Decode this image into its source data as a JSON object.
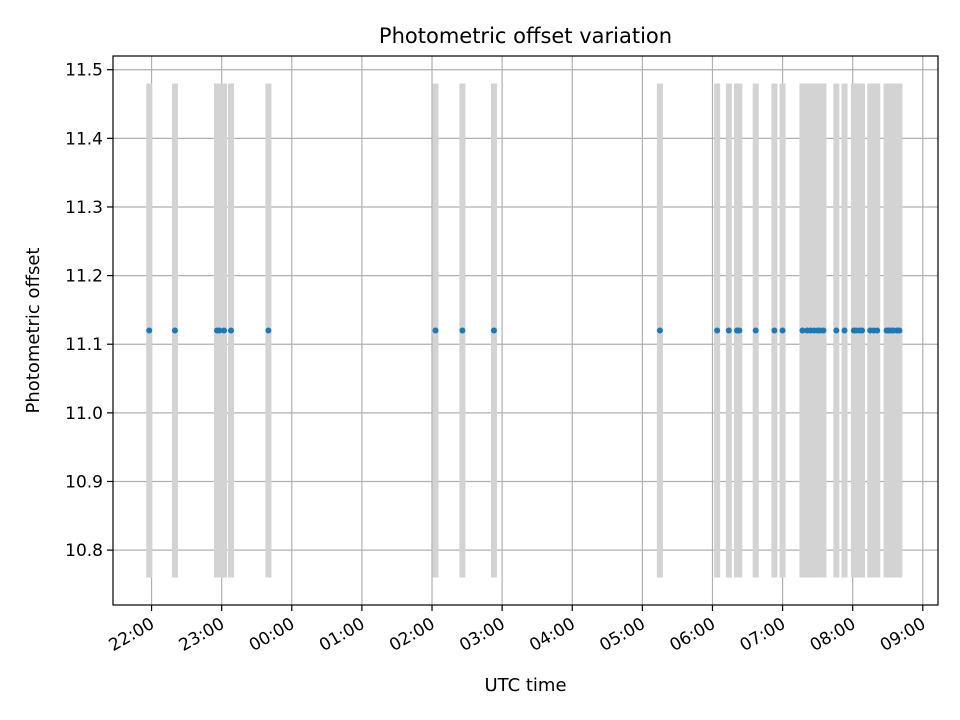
{
  "chart_data": {
    "type": "scatter",
    "title": "Photometric offset variation",
    "xlabel": "UTC time",
    "ylabel": "Photometric offset",
    "x_axis_kind": "time-of-day spanning midnight",
    "xlim": [
      "21:27",
      "09:13"
    ],
    "ylim": [
      10.72,
      11.52
    ],
    "x_ticks": [
      "22:00",
      "23:00",
      "00:00",
      "01:00",
      "02:00",
      "03:00",
      "04:00",
      "05:00",
      "06:00",
      "07:00",
      "08:00",
      "09:00"
    ],
    "y_ticks": [
      "10.8",
      "10.9",
      "11.0",
      "11.1",
      "11.2",
      "11.3",
      "11.4",
      "11.5"
    ],
    "grid": true,
    "error_bar_range": [
      10.76,
      11.48
    ],
    "series": [
      {
        "color": "#1f77b4",
        "errorbar_color": "#d3d3d3",
        "points": [
          {
            "x": "21:58",
            "y": 11.12
          },
          {
            "x": "22:20",
            "y": 11.12
          },
          {
            "x": "22:56",
            "y": 11.12
          },
          {
            "x": "22:58",
            "y": 11.12
          },
          {
            "x": "23:02",
            "y": 11.12
          },
          {
            "x": "23:08",
            "y": 11.12
          },
          {
            "x": "23:40",
            "y": 11.12
          },
          {
            "x": "02:03",
            "y": 11.12
          },
          {
            "x": "02:26",
            "y": 11.12
          },
          {
            "x": "02:53",
            "y": 11.12
          },
          {
            "x": "05:15",
            "y": 11.12
          },
          {
            "x": "06:04",
            "y": 11.12
          },
          {
            "x": "06:14",
            "y": 11.12
          },
          {
            "x": "06:21",
            "y": 11.12
          },
          {
            "x": "06:23",
            "y": 11.12
          },
          {
            "x": "06:37",
            "y": 11.12
          },
          {
            "x": "06:53",
            "y": 11.12
          },
          {
            "x": "07:00",
            "y": 11.12
          },
          {
            "x": "07:17",
            "y": 11.12
          },
          {
            "x": "07:21",
            "y": 11.12
          },
          {
            "x": "07:24",
            "y": 11.12
          },
          {
            "x": "07:27",
            "y": 11.12
          },
          {
            "x": "07:30",
            "y": 11.12
          },
          {
            "x": "07:32",
            "y": 11.12
          },
          {
            "x": "07:35",
            "y": 11.12
          },
          {
            "x": "07:46",
            "y": 11.12
          },
          {
            "x": "07:53",
            "y": 11.12
          },
          {
            "x": "08:01",
            "y": 11.12
          },
          {
            "x": "08:03",
            "y": 11.12
          },
          {
            "x": "08:06",
            "y": 11.12
          },
          {
            "x": "08:08",
            "y": 11.12
          },
          {
            "x": "08:15",
            "y": 11.12
          },
          {
            "x": "08:18",
            "y": 11.12
          },
          {
            "x": "08:21",
            "y": 11.12
          },
          {
            "x": "08:29",
            "y": 11.12
          },
          {
            "x": "08:31",
            "y": 11.12
          },
          {
            "x": "08:33",
            "y": 11.12
          },
          {
            "x": "08:35",
            "y": 11.12
          },
          {
            "x": "08:38",
            "y": 11.12
          },
          {
            "x": "08:40",
            "y": 11.12
          }
        ]
      }
    ]
  }
}
